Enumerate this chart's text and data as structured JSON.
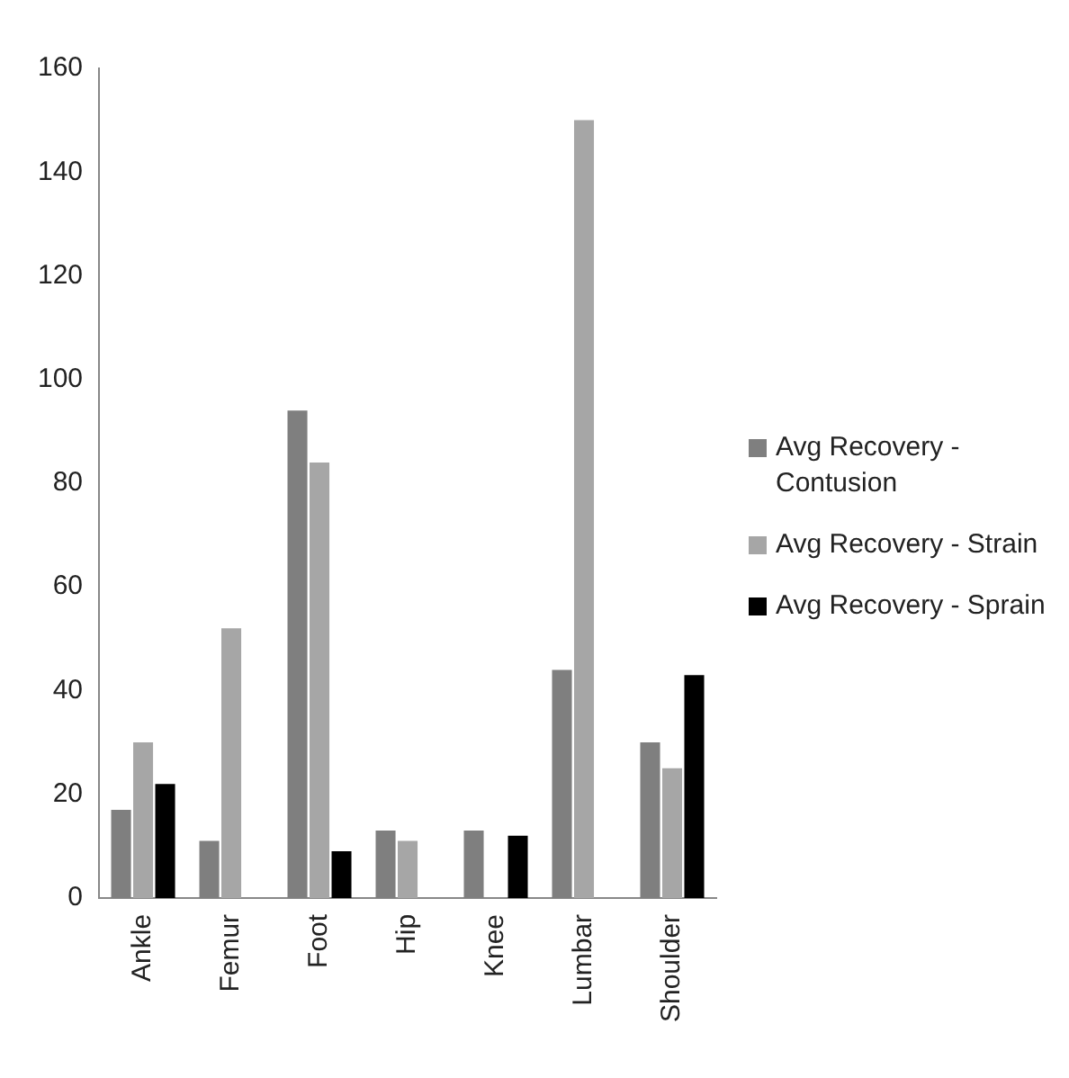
{
  "chart_data": {
    "type": "bar",
    "categories": [
      "Ankle",
      "Femur",
      "Foot",
      "Hip",
      "Knee",
      "Lumbar",
      "Shoulder"
    ],
    "series": [
      {
        "name": "Avg Recovery - Contusion",
        "color": "#7f7f7f",
        "values": [
          17,
          11,
          94,
          13,
          13,
          44,
          30
        ]
      },
      {
        "name": "Avg Recovery - Strain",
        "color": "#a6a6a6",
        "values": [
          30,
          52,
          84,
          11,
          null,
          150,
          25
        ]
      },
      {
        "name": "Avg Recovery - Sprain",
        "color": "#000000",
        "values": [
          22,
          null,
          9,
          null,
          12,
          null,
          43
        ]
      }
    ],
    "ylim": [
      0,
      160
    ],
    "yticks": [
      0,
      20,
      40,
      60,
      80,
      100,
      120,
      140,
      160
    ],
    "grid": false,
    "legend": "right"
  }
}
